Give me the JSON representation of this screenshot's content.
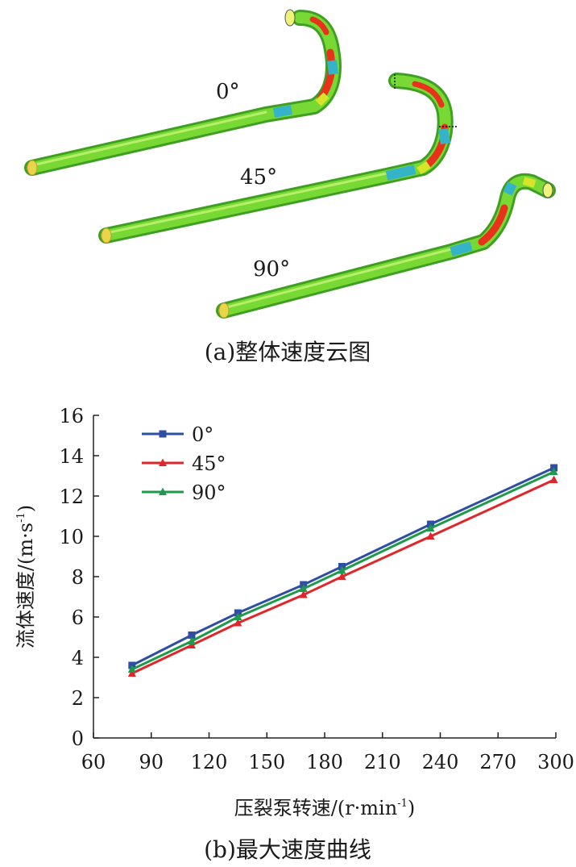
{
  "panel_a": {
    "caption": "(a)整体速度云图",
    "pipe_labels": [
      "0°",
      "45°",
      "90°"
    ],
    "colors": {
      "green": "#6ad22c",
      "yellow": "#d6e52a",
      "red": "#e8321c",
      "cyan": "#35b4c9"
    }
  },
  "panel_b": {
    "caption": "(b)最大速度曲线"
  },
  "chart_data": {
    "type": "line",
    "title": "",
    "xlabel": "压裂泵转速/(r·min",
    "xlabel_sup": "-1",
    "xlabel_close": ")",
    "ylabel": "流体速度/(m·s",
    "ylabel_sup": "-1",
    "ylabel_close": ")",
    "xlim": [
      60,
      300
    ],
    "ylim": [
      0,
      16
    ],
    "xticks": [
      60,
      90,
      120,
      150,
      180,
      210,
      240,
      270,
      300
    ],
    "yticks": [
      0,
      2,
      4,
      6,
      8,
      10,
      12,
      14,
      16
    ],
    "grid": false,
    "legend_position": "top-left",
    "x": [
      80,
      111,
      135,
      169,
      189,
      235,
      299
    ],
    "series": [
      {
        "name": "0°",
        "color": "#2e4fa3",
        "marker": "square",
        "values": [
          3.6,
          5.1,
          6.2,
          7.6,
          8.5,
          10.6,
          13.4
        ]
      },
      {
        "name": "45°",
        "color": "#e0262a",
        "marker": "triangle",
        "values": [
          3.2,
          4.6,
          5.7,
          7.1,
          8.0,
          10.0,
          12.8
        ]
      },
      {
        "name": "90°",
        "color": "#1f9a4c",
        "marker": "triangle",
        "values": [
          3.4,
          4.8,
          6.0,
          7.4,
          8.3,
          10.4,
          13.2
        ]
      }
    ]
  }
}
